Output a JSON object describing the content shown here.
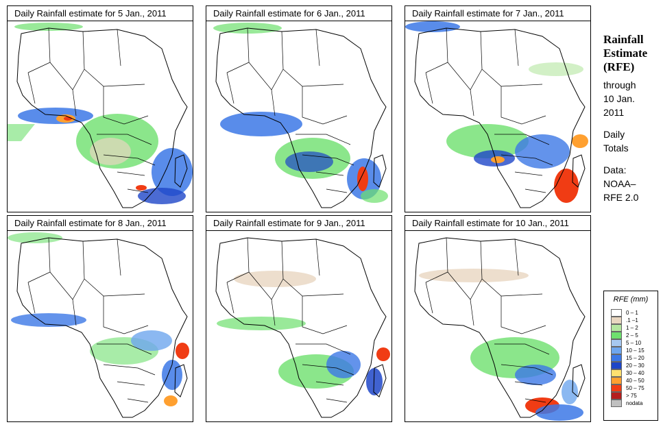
{
  "panels": [
    {
      "title": "Daily Rainfall estimate for  5 Jan., 2011"
    },
    {
      "title": "Daily Rainfall estimate for  6 Jan., 2011"
    },
    {
      "title": "Daily Rainfall estimate for  7 Jan., 2011"
    },
    {
      "title": "Daily Rainfall estimate for  8 Jan., 2011"
    },
    {
      "title": "Daily Rainfall estimate for  9 Jan., 2011"
    },
    {
      "title": "Daily Rainfall estimate for  10 Jan., 2011"
    }
  ],
  "side": {
    "title_line1": "Rainfall",
    "title_line2": "Estimate",
    "title_line3": "(RFE)",
    "through_label": "through",
    "through_date_line1": "10 Jan.",
    "through_date_line2": "2011",
    "totals_line1": "Daily",
    "totals_line2": "Totals",
    "data_label": "Data:",
    "data_source_line1": "NOAA–",
    "data_source_line2": "RFE 2.0"
  },
  "legend": {
    "title": "RFE (mm)",
    "items": [
      {
        "label": "0 – 1",
        "color": "#ffffff"
      },
      {
        "label": ".1 –1",
        "color": "#e8d6c0"
      },
      {
        "label": "1 – 2",
        "color": "#b4e6a0"
      },
      {
        "label": "2 – 5",
        "color": "#6ee06e"
      },
      {
        "label": "5 – 10",
        "color": "#a6c8f0"
      },
      {
        "label": "10 – 15",
        "color": "#6ea6ee"
      },
      {
        "label": "15 – 20",
        "color": "#3c78e6"
      },
      {
        "label": "20 – 30",
        "color": "#1e46c8"
      },
      {
        "label": "30 – 40",
        "color": "#ffe070"
      },
      {
        "label": "40 – 50",
        "color": "#ffa030"
      },
      {
        "label": "50 – 75",
        "color": "#f03c14"
      },
      {
        "label": "> 75",
        "color": "#b41e1e"
      },
      {
        "label": "nodata",
        "color": "#c0c0c0"
      }
    ]
  }
}
